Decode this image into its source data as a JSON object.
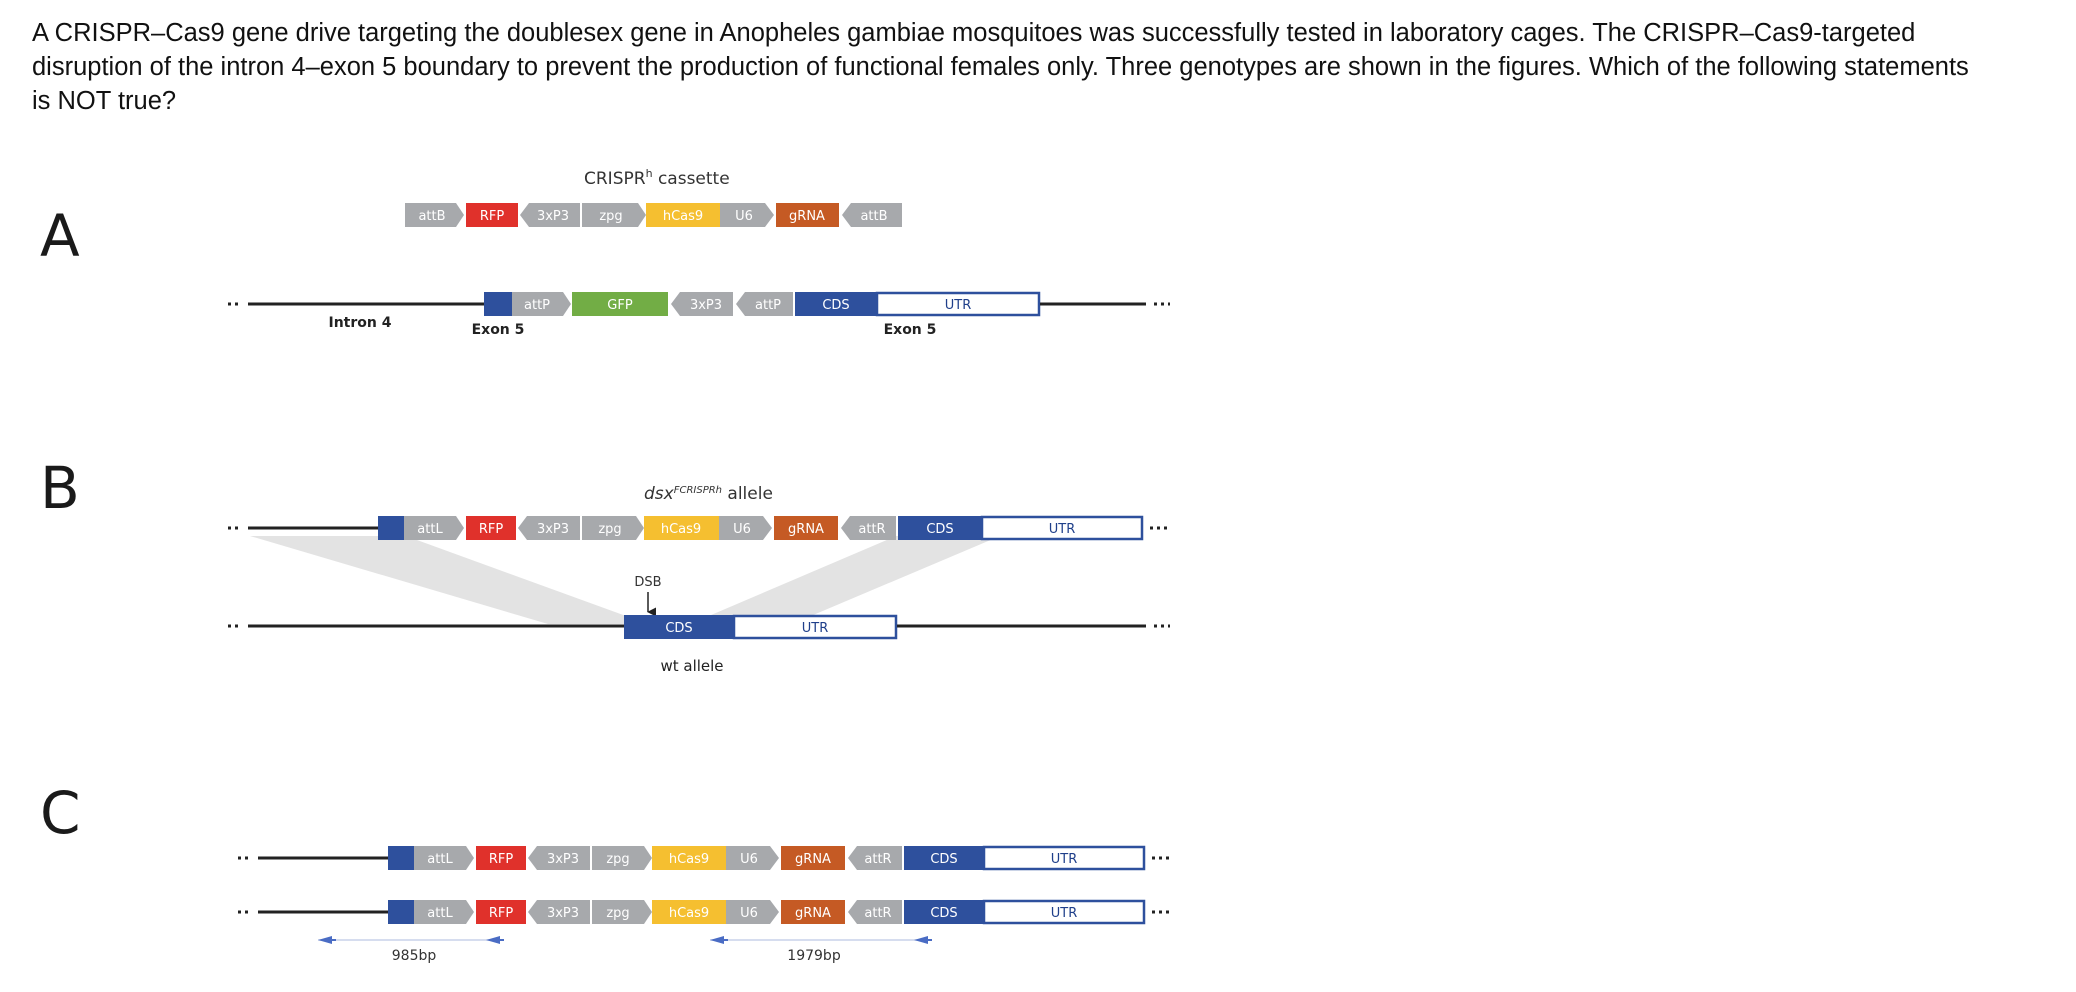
{
  "question": {
    "text": "A CRISPR–Cas9 gene drive targeting the doublesex gene in Anopheles gambiae mosquitoes was successfully tested in laboratory cages. The CRISPR–Cas9-targeted disruption of the intron 4–exon 5 boundary to prevent the production of functional females only. Three genotypes are shown in the figures. Which of the following statements is NOT true?"
  },
  "colors": {
    "grey": "#a7a9ac",
    "red": "#e0312b",
    "yellow": "#f5bf30",
    "orange": "#c55a24",
    "green": "#72ad45",
    "blue": "#2e509d",
    "line": "#222222",
    "shade": "#e3e3e3",
    "arrow_blue": "#4a6cc4"
  },
  "panels": {
    "a": {
      "letter": "A"
    },
    "b": {
      "letter": "B"
    },
    "c": {
      "letter": "C"
    }
  },
  "cassette": {
    "title_main": "CRISPR",
    "title_sup": "h",
    "title_tail": " cassette"
  },
  "segments": {
    "attB": "attB",
    "RFP": "RFP",
    "3xP3": "3xP3",
    "zpg": "zpg",
    "hCas9": "hCas9",
    "U6": "U6",
    "gRNA": "gRNA",
    "attP": "attP",
    "GFP": "GFP",
    "CDS": "CDS",
    "UTR": "UTR",
    "attL": "attL",
    "attR": "attR"
  },
  "labels": {
    "intron4": "Intron 4",
    "exon5": "Exon 5",
    "allele_prefix": "dsx",
    "allele_sup": "FCRISPRh",
    "allele_suffix": " allele",
    "dsb": "DSB",
    "wt_allele": "wt allele",
    "bp_left": "985bp",
    "bp_right": "1979bp"
  }
}
